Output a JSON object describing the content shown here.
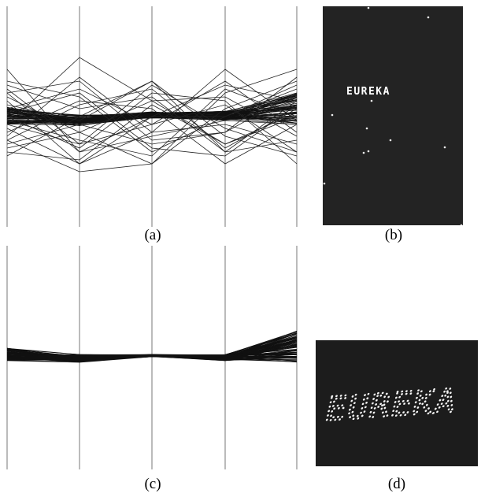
{
  "figure": {
    "captions": {
      "a": "(a)",
      "b": "(b)",
      "c": "(c)",
      "d": "(d)"
    },
    "panel_b_text": "EUREKA",
    "panel_d_text": "EUREKA",
    "colors": {
      "background": "#ffffff",
      "lines": "#1a1a1a",
      "axes": "#666666",
      "dark_panel": "#232323",
      "dots": "#f5f5f5"
    },
    "axis_count": 5
  }
}
